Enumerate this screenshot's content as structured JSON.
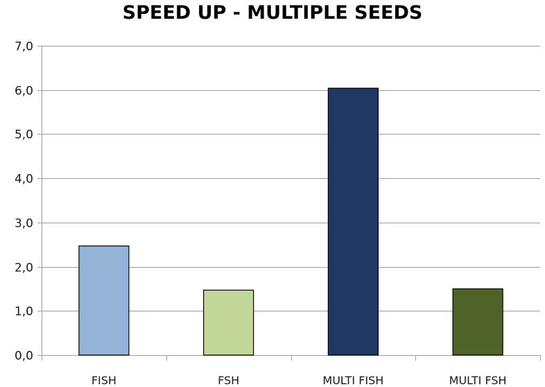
{
  "chart_data": {
    "type": "bar",
    "title": "SPEED UP - MULTIPLE SEEDS",
    "xlabel": "",
    "ylabel": "",
    "categories": [
      "FISH",
      "FSH",
      "MULTI FISH",
      "MULTI FSH"
    ],
    "values": [
      2.47,
      1.47,
      6.04,
      1.5
    ],
    "colors": [
      "#95b3d7",
      "#c4d79b",
      "#1f3864",
      "#4f6228"
    ],
    "ylim": [
      0,
      7
    ],
    "yticks": [
      0,
      1,
      2,
      3,
      4,
      5,
      6,
      7
    ],
    "ytick_labels": [
      "0,0",
      "1,0",
      "2,0",
      "3,0",
      "4,0",
      "5,0",
      "6,0",
      "7,0"
    ],
    "grid": true,
    "legend": "none"
  }
}
